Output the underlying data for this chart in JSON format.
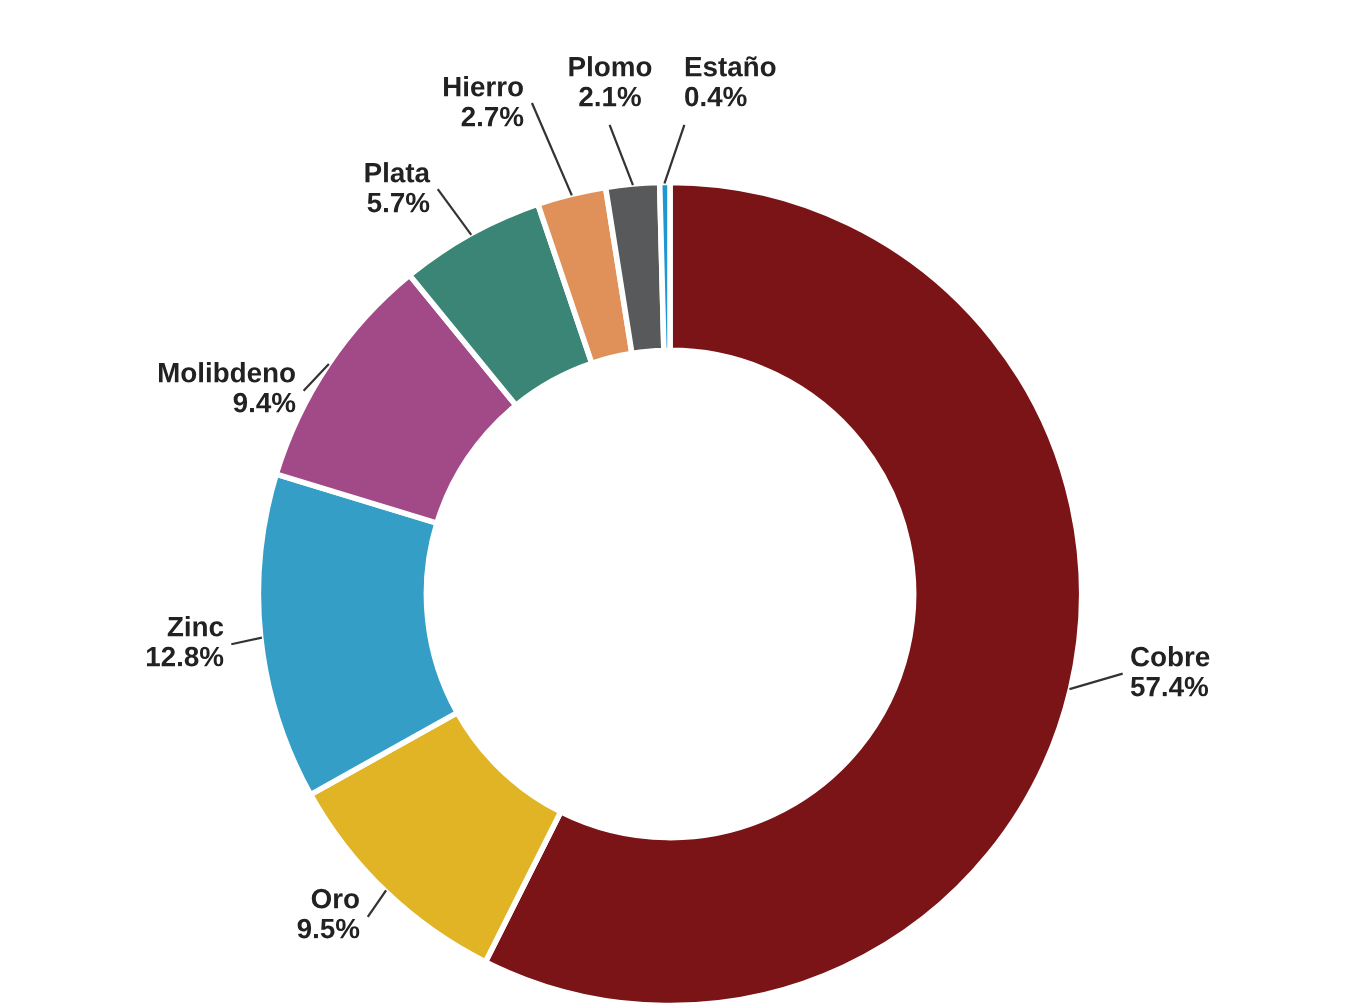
{
  "chart_data": {
    "type": "donut",
    "categories": [
      "Cobre",
      "Oro",
      "Zinc",
      "Molibdeno",
      "Plata",
      "Hierro",
      "Plomo",
      "Estaño"
    ],
    "values": [
      57.4,
      9.5,
      12.8,
      9.4,
      5.7,
      2.7,
      2.1,
      0.4
    ],
    "colors": [
      "#7b1416",
      "#e0b424",
      "#349ec6",
      "#a24a88",
      "#3a8576",
      "#e0915a",
      "#58595b",
      "#2196d3"
    ],
    "value_labels": [
      "57.4%",
      "9.5%",
      "12.8%",
      "9.4%",
      "5.7%",
      "2.7%",
      "2.1%",
      "0.4%"
    ]
  }
}
